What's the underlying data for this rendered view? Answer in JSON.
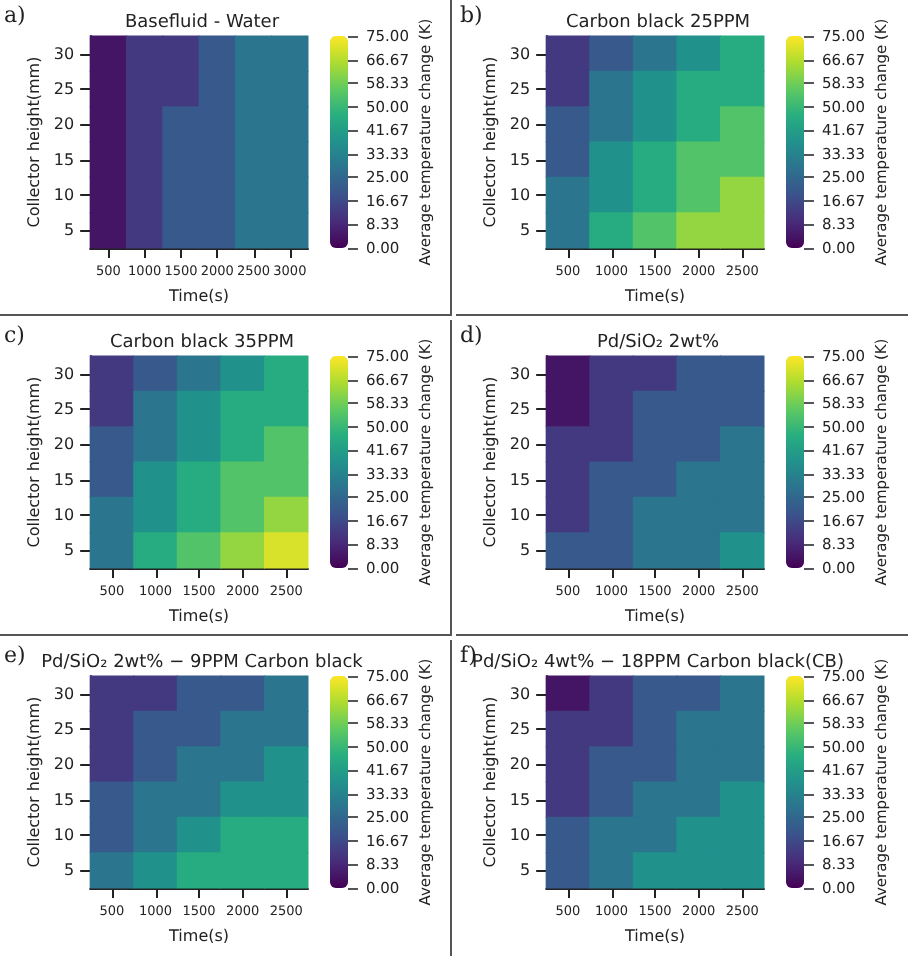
{
  "chart_data": [
    {
      "type": "heatmap",
      "title": "Basefluid - Water",
      "annotations": [
        "a)"
      ],
      "xlabel": "Time(s)",
      "ylabel": "Collector height(mm)",
      "clabel": "Average temperature change (K)",
      "categories": [
        "500",
        "1000",
        "1500",
        "2000",
        "2500",
        "3000"
      ],
      "y_categories": [
        "30",
        "25",
        "20",
        "15",
        "10",
        "5"
      ],
      "clim": [
        0,
        75
      ],
      "cticks": [
        {
          "value": 0,
          "label": "0.00"
        },
        {
          "value": 8.33,
          "label": "8.33"
        },
        {
          "value": 16.67,
          "label": "16.67"
        },
        {
          "value": 25,
          "label": "25.00"
        },
        {
          "value": 33.33,
          "label": "33.33"
        },
        {
          "value": 41.67,
          "label": "41.67"
        },
        {
          "value": 50,
          "label": "50.00"
        },
        {
          "value": 58.33,
          "label": "58.33"
        },
        {
          "value": 66.67,
          "label": "66.67"
        },
        {
          "value": 75,
          "label": "75.00"
        }
      ],
      "cells": [
        [
          4.2,
          12.5,
          12.5,
          20.8,
          29.2,
          29.2
        ],
        [
          4.2,
          12.5,
          12.5,
          20.8,
          29.2,
          29.2
        ],
        [
          4.2,
          12.5,
          20.8,
          20.8,
          29.2,
          29.2
        ],
        [
          4.2,
          12.5,
          20.8,
          20.8,
          29.2,
          29.2
        ],
        [
          4.2,
          12.5,
          20.8,
          20.8,
          29.2,
          29.2
        ],
        [
          4.2,
          12.5,
          20.8,
          20.8,
          29.2,
          29.2
        ]
      ]
    },
    {
      "type": "heatmap",
      "title": "Carbon black 25PPM",
      "annotations": [
        "b)"
      ],
      "xlabel": "Time(s)",
      "ylabel": "Collector height(mm)",
      "clabel": "Average temperature change (K)",
      "categories": [
        "500",
        "1000",
        "1500",
        "2000",
        "2500"
      ],
      "y_categories": [
        "30",
        "25",
        "20",
        "15",
        "10",
        "5"
      ],
      "clim": [
        0,
        75
      ],
      "cticks": [
        {
          "value": 0,
          "label": "0.00"
        },
        {
          "value": 8.33,
          "label": "8.33"
        },
        {
          "value": 16.67,
          "label": "16.67"
        },
        {
          "value": 25,
          "label": "25.00"
        },
        {
          "value": 33.33,
          "label": "33.33"
        },
        {
          "value": 41.67,
          "label": "41.67"
        },
        {
          "value": 50,
          "label": "50.00"
        },
        {
          "value": 58.33,
          "label": "58.33"
        },
        {
          "value": 66.67,
          "label": "66.67"
        },
        {
          "value": 75,
          "label": "75.00"
        }
      ],
      "cells": [
        [
          12.5,
          20.8,
          29.2,
          37.5,
          45.8
        ],
        [
          12.5,
          29.2,
          37.5,
          45.8,
          45.8
        ],
        [
          20.8,
          29.2,
          37.5,
          45.8,
          54.2
        ],
        [
          20.8,
          37.5,
          45.8,
          54.2,
          54.2
        ],
        [
          29.2,
          37.5,
          45.8,
          54.2,
          62.5
        ],
        [
          29.2,
          45.8,
          54.2,
          62.5,
          62.5
        ]
      ]
    },
    {
      "type": "heatmap",
      "title": "Carbon black 35PPM",
      "annotations": [
        "c)"
      ],
      "xlabel": "Time(s)",
      "ylabel": "Collector height(mm)",
      "clabel": "Average temperature change (K)",
      "categories": [
        "500",
        "1000",
        "1500",
        "2000",
        "2500"
      ],
      "y_categories": [
        "30",
        "25",
        "20",
        "15",
        "10",
        "5"
      ],
      "clim": [
        0,
        75
      ],
      "cticks": [
        {
          "value": 0,
          "label": "0.00"
        },
        {
          "value": 8.33,
          "label": "8.33"
        },
        {
          "value": 16.67,
          "label": "16.67"
        },
        {
          "value": 25,
          "label": "25.00"
        },
        {
          "value": 33.33,
          "label": "33.33"
        },
        {
          "value": 41.67,
          "label": "41.67"
        },
        {
          "value": 50,
          "label": "50.00"
        },
        {
          "value": 58.33,
          "label": "58.33"
        },
        {
          "value": 66.67,
          "label": "66.67"
        },
        {
          "value": 75,
          "label": "75.00"
        }
      ],
      "cells": [
        [
          12.5,
          20.8,
          29.2,
          37.5,
          45.8
        ],
        [
          12.5,
          29.2,
          37.5,
          45.8,
          45.8
        ],
        [
          20.8,
          29.2,
          37.5,
          45.8,
          54.2
        ],
        [
          20.8,
          37.5,
          45.8,
          54.2,
          54.2
        ],
        [
          29.2,
          37.5,
          45.8,
          54.2,
          62.5
        ],
        [
          29.2,
          45.8,
          54.2,
          62.5,
          70.8
        ]
      ]
    },
    {
      "type": "heatmap",
      "title": "Pd/SiO₂ 2wt%",
      "annotations": [
        "d)"
      ],
      "xlabel": "Time(s)",
      "ylabel": "Collector height(mm)",
      "clabel": "Average temperature change (K)",
      "categories": [
        "500",
        "1000",
        "1500",
        "2000",
        "2500"
      ],
      "y_categories": [
        "30",
        "25",
        "20",
        "15",
        "10",
        "5"
      ],
      "clim": [
        0,
        75
      ],
      "cticks": [
        {
          "value": 0,
          "label": "0.00"
        },
        {
          "value": 8.33,
          "label": "8.33"
        },
        {
          "value": 16.67,
          "label": "16.67"
        },
        {
          "value": 25,
          "label": "25.00"
        },
        {
          "value": 33.33,
          "label": "33.33"
        },
        {
          "value": 41.67,
          "label": "41.67"
        },
        {
          "value": 50,
          "label": "50.00"
        },
        {
          "value": 58.33,
          "label": "58.33"
        },
        {
          "value": 66.67,
          "label": "66.67"
        },
        {
          "value": 75,
          "label": "75.00"
        }
      ],
      "cells": [
        [
          4.2,
          12.5,
          12.5,
          20.8,
          20.8
        ],
        [
          4.2,
          12.5,
          20.8,
          20.8,
          20.8
        ],
        [
          12.5,
          12.5,
          20.8,
          20.8,
          29.2
        ],
        [
          12.5,
          20.8,
          20.8,
          29.2,
          29.2
        ],
        [
          12.5,
          20.8,
          29.2,
          29.2,
          29.2
        ],
        [
          20.8,
          20.8,
          29.2,
          29.2,
          37.5
        ]
      ]
    },
    {
      "type": "heatmap",
      "title": "Pd/SiO₂ 2wt% − 9PPM Carbon black",
      "annotations": [
        "e)"
      ],
      "xlabel": "Time(s)",
      "ylabel": "Collector height(mm)",
      "clabel": "Average temperature change (K)",
      "categories": [
        "500",
        "1000",
        "1500",
        "2000",
        "2500"
      ],
      "y_categories": [
        "30",
        "25",
        "20",
        "15",
        "10",
        "5"
      ],
      "clim": [
        0,
        75
      ],
      "cticks": [
        {
          "value": 0,
          "label": "0.00"
        },
        {
          "value": 8.33,
          "label": "8.33"
        },
        {
          "value": 16.67,
          "label": "16.67"
        },
        {
          "value": 25,
          "label": "25.00"
        },
        {
          "value": 33.33,
          "label": "33.33"
        },
        {
          "value": 41.67,
          "label": "41.67"
        },
        {
          "value": 50,
          "label": "50.00"
        },
        {
          "value": 58.33,
          "label": "58.33"
        },
        {
          "value": 66.67,
          "label": "66.67"
        },
        {
          "value": 75,
          "label": "75.00"
        }
      ],
      "cells": [
        [
          12.5,
          12.5,
          20.8,
          20.8,
          29.2
        ],
        [
          12.5,
          20.8,
          20.8,
          29.2,
          29.2
        ],
        [
          12.5,
          20.8,
          29.2,
          29.2,
          37.5
        ],
        [
          20.8,
          29.2,
          29.2,
          37.5,
          37.5
        ],
        [
          20.8,
          29.2,
          37.5,
          45.8,
          45.8
        ],
        [
          29.2,
          37.5,
          45.8,
          45.8,
          45.8
        ]
      ]
    },
    {
      "type": "heatmap",
      "title": "Pd/SiO₂ 4wt% − 18PPM Carbon black(CB)",
      "annotations": [
        "f)"
      ],
      "xlabel": "Time(s)",
      "ylabel": "Collector height(mm)",
      "clabel": "Average temperature change (K)",
      "categories": [
        "500",
        "1000",
        "1500",
        "2000",
        "2500"
      ],
      "y_categories": [
        "30",
        "25",
        "20",
        "15",
        "10",
        "5"
      ],
      "clim": [
        0,
        75
      ],
      "cticks": [
        {
          "value": 0,
          "label": "0.00"
        },
        {
          "value": 8.33,
          "label": "8.33"
        },
        {
          "value": 16.67,
          "label": "16.67"
        },
        {
          "value": 25,
          "label": "25.00"
        },
        {
          "value": 33.33,
          "label": "33.33"
        },
        {
          "value": 41.67,
          "label": "41.67"
        },
        {
          "value": 50,
          "label": "50.00"
        },
        {
          "value": 58.33,
          "label": "58.33"
        },
        {
          "value": 66.67,
          "label": "66.67"
        },
        {
          "value": 75,
          "label": "75.00"
        }
      ],
      "cells": [
        [
          4.2,
          12.5,
          20.8,
          20.8,
          29.2
        ],
        [
          12.5,
          12.5,
          20.8,
          29.2,
          29.2
        ],
        [
          12.5,
          20.8,
          20.8,
          29.2,
          29.2
        ],
        [
          12.5,
          20.8,
          29.2,
          29.2,
          37.5
        ],
        [
          20.8,
          29.2,
          29.2,
          37.5,
          37.5
        ],
        [
          20.8,
          29.2,
          37.5,
          37.5,
          37.5
        ]
      ]
    }
  ]
}
